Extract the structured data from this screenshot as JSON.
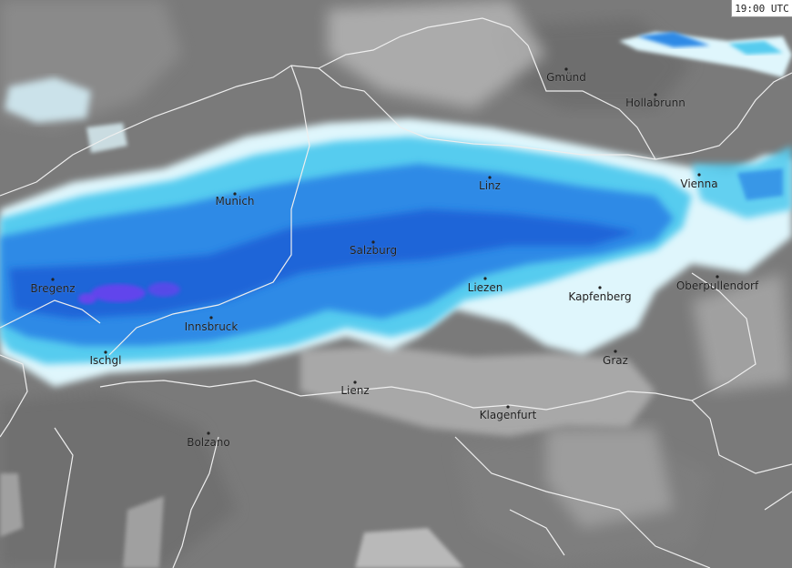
{
  "timestamp": "19:00 UTC",
  "colors": {
    "background": "#7a7a7a",
    "terrain_light": "#a9a9a9",
    "terrain_dark": "#6c6c6c",
    "borders": "#e8e8e8",
    "precip_light": "#d9f4fb",
    "precip_cyan": "#5cd0f0",
    "precip_blue": "#2f8ee8",
    "precip_deep": "#1f5fd6",
    "precip_violet": "#7a3cf0"
  },
  "cities": [
    {
      "name": "Gmünd",
      "icon": "city-dot-icon"
    },
    {
      "name": "Hollabrunn",
      "icon": "city-dot-icon"
    },
    {
      "name": "Linz",
      "icon": "city-dot-icon"
    },
    {
      "name": "Vienna",
      "icon": "city-dot-icon"
    },
    {
      "name": "Munich",
      "icon": "city-dot-icon"
    },
    {
      "name": "Salzburg",
      "icon": "city-dot-icon"
    },
    {
      "name": "Bregenz",
      "icon": "city-dot-icon"
    },
    {
      "name": "Liezen",
      "icon": "city-dot-icon"
    },
    {
      "name": "Kapfenberg",
      "icon": "city-dot-icon"
    },
    {
      "name": "Oberpullendorf",
      "icon": "city-dot-icon"
    },
    {
      "name": "Innsbruck",
      "icon": "city-dot-icon"
    },
    {
      "name": "Ischgl",
      "icon": "city-dot-icon"
    },
    {
      "name": "Graz",
      "icon": "city-dot-icon"
    },
    {
      "name": "Lienz",
      "icon": "city-dot-icon"
    },
    {
      "name": "Klagenfurt",
      "icon": "city-dot-icon"
    },
    {
      "name": "Bolzano",
      "icon": "city-dot-icon"
    }
  ]
}
